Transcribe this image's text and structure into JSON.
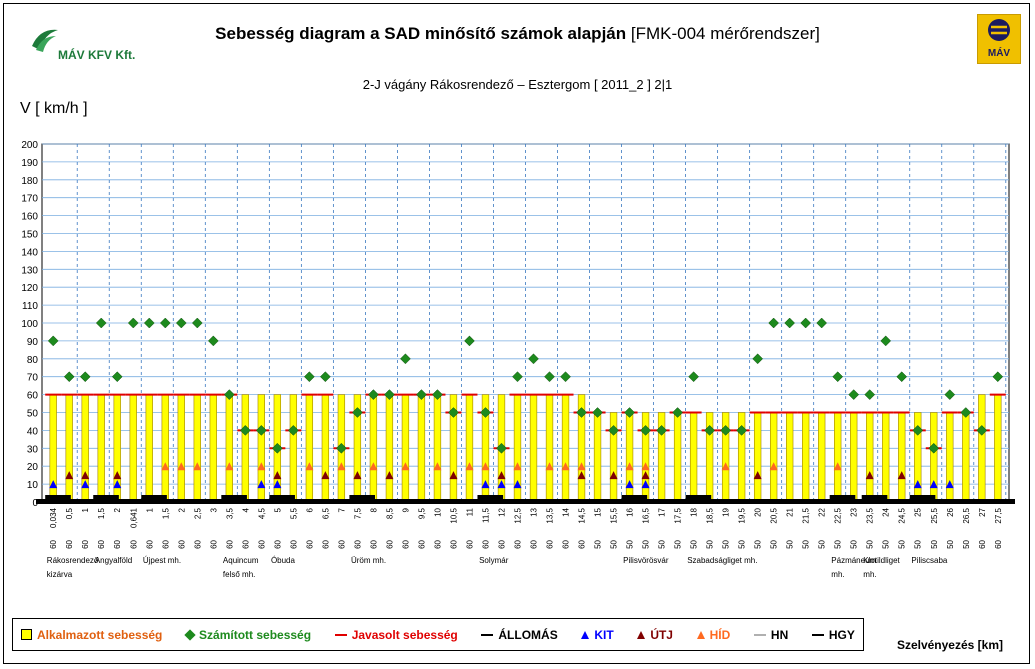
{
  "header": {
    "title_bold": "Sebesség diagram a SAD minősítő számok alapján",
    "title_rest": "[FMK-004 mérőrendszer]",
    "subtitle": "2-J vágány   Rákosrendező – Esztergom [ 2011_2 ]  2|1",
    "logo_left_text": "MÁV KFV Kft.",
    "logo_right_text": "MÁV"
  },
  "chart_data": {
    "type": "bar",
    "ylabel": "V [ km/h ]",
    "xlabel": "Szelvényezés [km]",
    "ylim": [
      0,
      200
    ],
    "ytick_step": 10,
    "grid": true,
    "x": [
      "0,034",
      "0,5",
      "1",
      "1,5",
      "2",
      "0,641",
      "1",
      "1,5",
      "2",
      "2,5",
      "3",
      "3,5",
      "4",
      "4,5",
      "5",
      "5,5",
      "6",
      "6,5",
      "7",
      "7,5",
      "8",
      "8,5",
      "9",
      "9,5",
      "10",
      "10,5",
      "11",
      "11,5",
      "12",
      "12,5",
      "13",
      "13,5",
      "14",
      "14,5",
      "15",
      "15,5",
      "16",
      "16,5",
      "17",
      "17,5",
      "18",
      "18,5",
      "19",
      "19,5",
      "20",
      "20,5",
      "21",
      "21,5",
      "22",
      "22,5",
      "23",
      "23,5",
      "24",
      "24,5",
      "25",
      "25,5",
      "26",
      "26,5",
      "27",
      "27,5"
    ],
    "bottom_values": [
      "60",
      "60",
      "60",
      "60",
      "60",
      "60",
      "60",
      "60",
      "60",
      "60",
      "60",
      "60",
      "60",
      "60",
      "60",
      "60",
      "60",
      "60",
      "60",
      "60",
      "60",
      "60",
      "60",
      "60",
      "60",
      "60",
      "60",
      "60",
      "60",
      "60",
      "60",
      "60",
      "60",
      "60",
      "50",
      "50",
      "50",
      "50",
      "50",
      "50",
      "50",
      "50",
      "50",
      "50",
      "50",
      "50",
      "50",
      "50",
      "50",
      "50",
      "50",
      "50",
      "50",
      "50",
      "50",
      "50",
      "50",
      "50",
      "60",
      "60"
    ],
    "series": [
      {
        "name": "Alkalmazott sebesség",
        "color": "#ffff00",
        "values": [
          60,
          60,
          60,
          60,
          60,
          60,
          60,
          60,
          60,
          60,
          60,
          60,
          60,
          60,
          60,
          60,
          60,
          60,
          60,
          60,
          60,
          60,
          60,
          60,
          60,
          60,
          60,
          60,
          60,
          60,
          60,
          60,
          60,
          60,
          50,
          50,
          50,
          50,
          50,
          50,
          50,
          50,
          50,
          50,
          50,
          50,
          50,
          50,
          50,
          50,
          50,
          50,
          50,
          50,
          50,
          50,
          50,
          50,
          60,
          60
        ]
      },
      {
        "name": "Számított sebesség",
        "color": "#1d8a1d",
        "values": [
          90,
          70,
          70,
          100,
          70,
          100,
          100,
          100,
          100,
          100,
          90,
          60,
          40,
          40,
          30,
          40,
          70,
          70,
          30,
          50,
          60,
          60,
          80,
          60,
          60,
          50,
          90,
          50,
          30,
          70,
          80,
          70,
          70,
          50,
          50,
          40,
          50,
          40,
          40,
          50,
          70,
          40,
          40,
          40,
          80,
          100,
          100,
          100,
          100,
          70,
          60,
          60,
          90,
          70,
          40,
          30,
          60,
          50,
          40,
          70
        ]
      },
      {
        "name": "Javasolt sebesség",
        "color": "#e00000",
        "values": [
          60,
          60,
          60,
          60,
          60,
          60,
          60,
          60,
          60,
          60,
          60,
          60,
          40,
          40,
          30,
          40,
          60,
          60,
          30,
          50,
          60,
          60,
          60,
          60,
          60,
          50,
          60,
          50,
          30,
          60,
          60,
          60,
          60,
          50,
          50,
          40,
          50,
          40,
          40,
          50,
          50,
          40,
          40,
          40,
          50,
          50,
          50,
          50,
          50,
          50,
          50,
          50,
          50,
          50,
          40,
          30,
          50,
          50,
          40,
          60
        ]
      },
      {
        "name": "ÁLLOMÁS",
        "color": "#000000"
      },
      {
        "name": "KIT",
        "color": "#0000ff",
        "marks": [
          0,
          2,
          4,
          13,
          14,
          27,
          28,
          29,
          36,
          37,
          54,
          55,
          56
        ]
      },
      {
        "name": "ÚTJ",
        "color": "#800000",
        "marks": [
          1,
          2,
          4,
          14,
          17,
          19,
          21,
          25,
          28,
          33,
          35,
          37,
          44,
          51,
          53
        ]
      },
      {
        "name": "HÍD",
        "color": "#ff6a20",
        "marks": [
          7,
          8,
          9,
          11,
          13,
          16,
          18,
          20,
          22,
          24,
          26,
          27,
          29,
          31,
          32,
          33,
          36,
          37,
          42,
          45,
          49
        ]
      },
      {
        "name": "HN",
        "color": "#b0b0b0"
      },
      {
        "name": "HGY",
        "color": "#000000"
      }
    ],
    "stations": [
      {
        "lines": [
          "Rákosrendező",
          "kizárva"
        ],
        "start": 0
      },
      {
        "lines": [
          "Angyalföld"
        ],
        "start": 3
      },
      {
        "lines": [
          "Újpest mh."
        ],
        "start": 6
      },
      {
        "lines": [
          "Aquincum",
          "felső mh."
        ],
        "start": 11
      },
      {
        "lines": [
          "Óbuda"
        ],
        "start": 14
      },
      {
        "lines": [
          "Üröm mh."
        ],
        "start": 19
      },
      {
        "lines": [
          "Solymár"
        ],
        "start": 27
      },
      {
        "lines": [
          "Pilisvörösvár"
        ],
        "start": 36
      },
      {
        "lines": [
          "Szabadságliget mh."
        ],
        "start": 40
      },
      {
        "lines": [
          "Pázmáneum",
          "mh."
        ],
        "start": 49
      },
      {
        "lines": [
          "Klotildliget",
          "mh."
        ],
        "start": 51
      },
      {
        "lines": [
          "Piliscsaba"
        ],
        "start": 54
      }
    ]
  }
}
